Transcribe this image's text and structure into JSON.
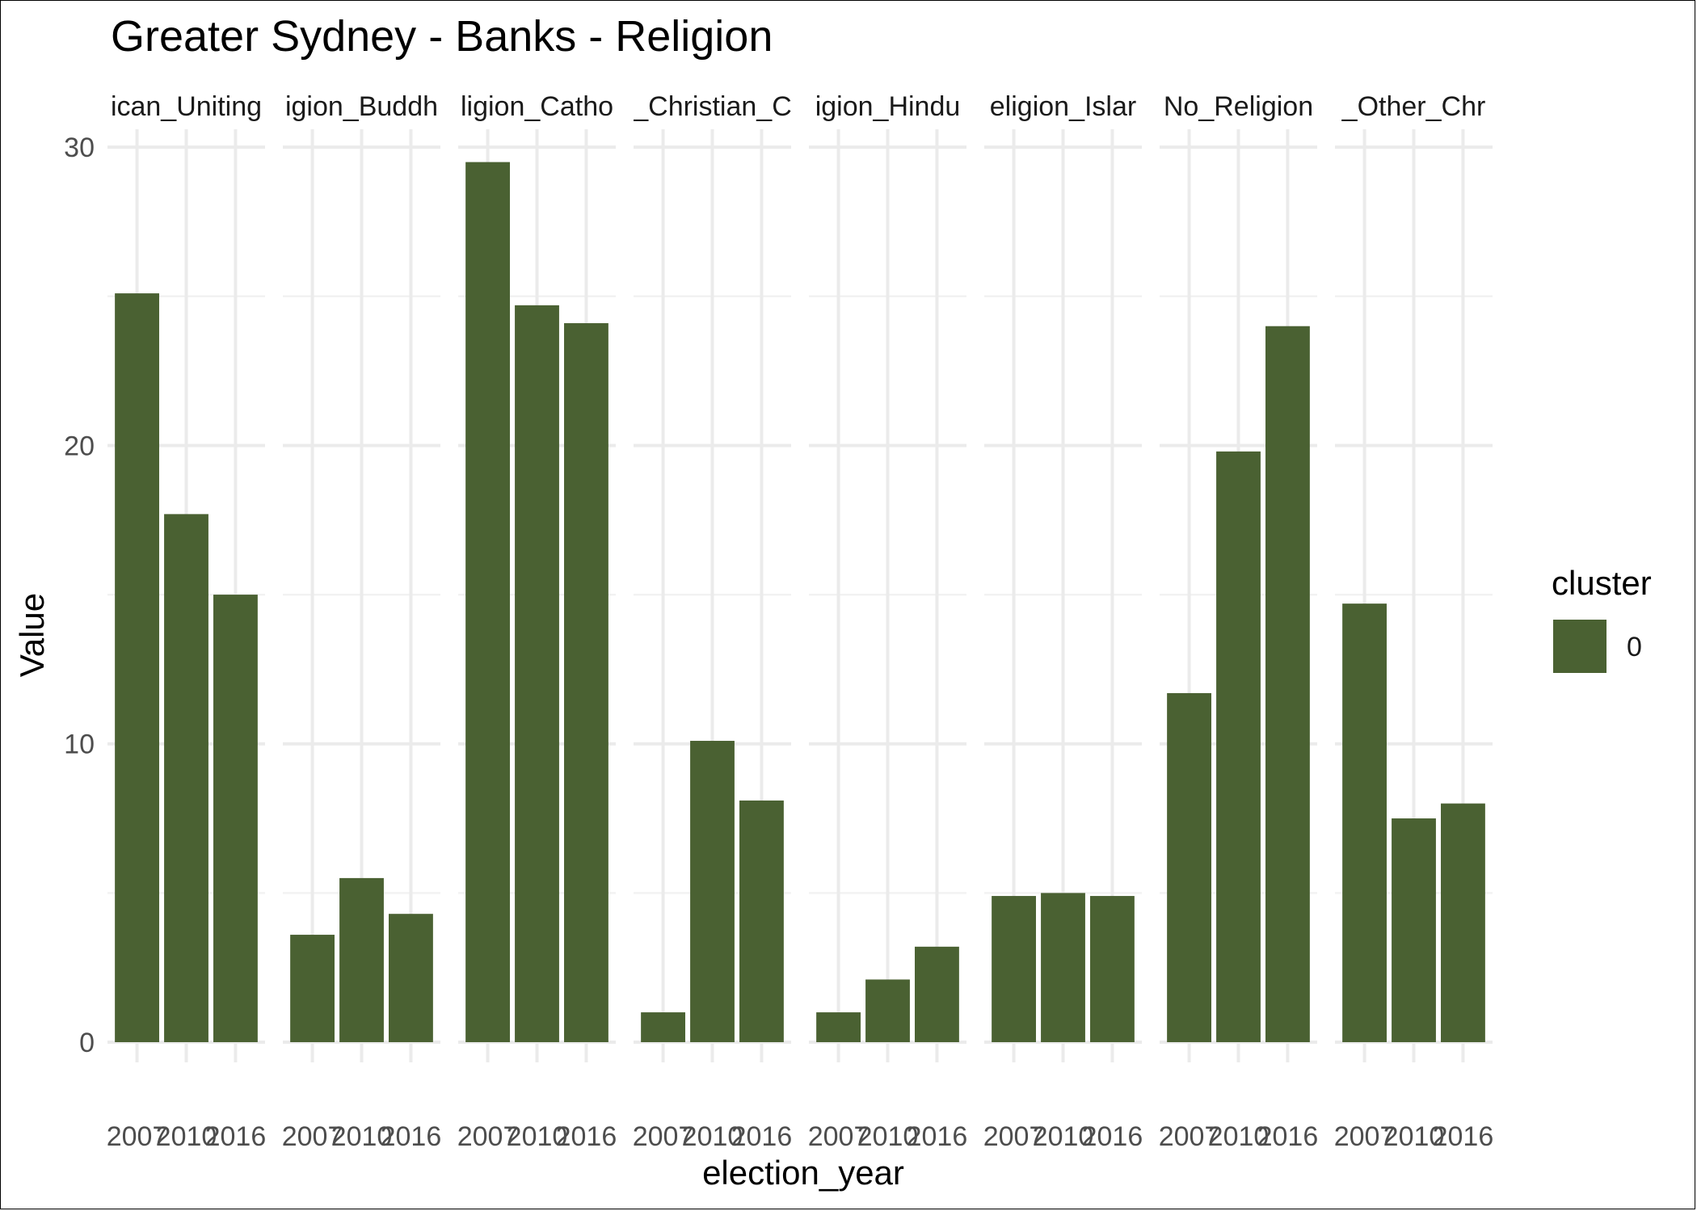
{
  "chart_data": {
    "type": "bar",
    "title": "Greater Sydney - Banks - Religion",
    "xlabel": "election_year",
    "ylabel": "Value",
    "ylim": [
      0,
      30
    ],
    "yticks": [
      0,
      10,
      20,
      30
    ],
    "grid": true,
    "legend": {
      "title": "cluster",
      "placement": "right",
      "entries": [
        {
          "label": "0",
          "color": "#4a6132"
        }
      ]
    },
    "bar_color": "#4a6132",
    "categories": [
      "2007",
      "2010",
      "2016"
    ],
    "category_labels": [
      "2007",
      "2010",
      "2016"
    ],
    "facets": [
      {
        "label": "ican_Uniting",
        "values": [
          25.1,
          17.7,
          15.0
        ]
      },
      {
        "label": "igion_Buddh",
        "values": [
          3.6,
          5.5,
          4.3
        ]
      },
      {
        "label": "ligion_Catho",
        "values": [
          29.5,
          24.7,
          24.1
        ]
      },
      {
        "label": "_Christian_C",
        "values": [
          1.0,
          10.1,
          8.1
        ]
      },
      {
        "label": "igion_Hindu",
        "values": [
          1.0,
          2.1,
          3.2
        ]
      },
      {
        "label": "eligion_Islar",
        "values": [
          4.9,
          5.0,
          4.9
        ]
      },
      {
        "label": "No_Religion",
        "values": [
          11.7,
          19.8,
          24.0
        ]
      },
      {
        "label": "_Other_Chr",
        "values": [
          14.7,
          7.5,
          8.0
        ]
      }
    ]
  }
}
